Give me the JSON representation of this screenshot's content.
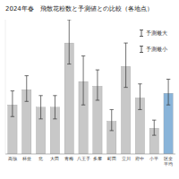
{
  "chart_data": {
    "type": "bar",
    "title": "2024年春　飛散花粉数と予測値との比較（各地点）",
    "categories": [
      "高強",
      "杯並",
      "北",
      "大田",
      "青梅",
      "八王子",
      "多摩",
      "町田",
      "立川",
      "府中",
      "小平",
      "区全\n平均"
    ],
    "values": [
      42,
      55,
      40,
      40,
      95,
      62,
      58,
      28,
      75,
      48,
      22,
      52
    ],
    "error_low": [
      10,
      10,
      10,
      10,
      18,
      20,
      12,
      8,
      18,
      10,
      6,
      10
    ],
    "error_high": [
      12,
      12,
      10,
      10,
      20,
      22,
      14,
      10,
      20,
      12,
      7,
      12
    ],
    "colors": [
      "#c8c8c8",
      "#c8c8c8",
      "#c8c8c8",
      "#c8c8c8",
      "#c8c8c8",
      "#c8c8c8",
      "#c8c8c8",
      "#c8c8c8",
      "#c8c8c8",
      "#c8c8c8",
      "#c8c8c8",
      "#89b4d9"
    ],
    "ylim": [
      0,
      115
    ],
    "tick_labels": "x",
    "grid": false,
    "legend": "upper right",
    "annotations": [
      "予測最大",
      "予測最小"
    ]
  }
}
